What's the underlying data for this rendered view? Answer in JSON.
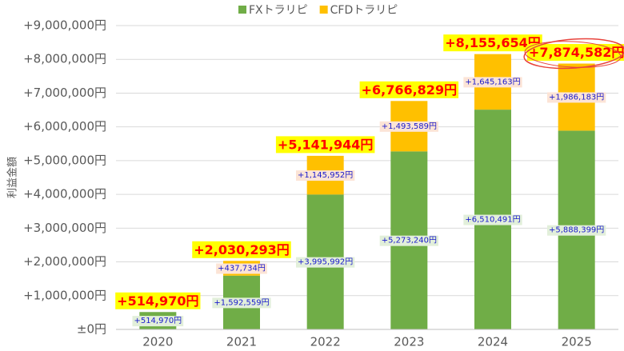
{
  "chart_data": {
    "type": "stacked_bar",
    "y_label": "利益金額",
    "categories": [
      "2020",
      "2021",
      "2022",
      "2023",
      "2024",
      "2025"
    ],
    "series": [
      {
        "name": "FXトラリピ",
        "color": "#70ad47",
        "label_bg": "#e2efda",
        "values": [
          514970,
          1592559,
          3995992,
          5273240,
          6510491,
          5888399
        ],
        "value_labels": [
          "+514,970円",
          "+1,592,559円",
          "+3,995,992円",
          "+5,273,240円",
          "+6,510,491円",
          "+5,888,399円"
        ]
      },
      {
        "name": "CFDトラリピ",
        "color": "#ffc000",
        "label_bg": "#fce4d6",
        "values": [
          null,
          437734,
          1145952,
          1493589,
          1645163,
          1986183
        ],
        "value_labels": [
          null,
          "+437,734円",
          "+1,145,952円",
          "+1,493,589円",
          "+1,645,163円",
          "+1,986,183円"
        ]
      }
    ],
    "totals": [
      514970,
      2030293,
      5141944,
      6766829,
      8155654,
      7874582
    ],
    "total_labels": [
      "+514,970円",
      "+2,030,293円",
      "+5,141,944円",
      "+6,766,829円",
      "+8,155,654円",
      "+7,874,582円"
    ],
    "ylim": [
      0,
      9000000
    ],
    "yticks": [
      {
        "value": 0,
        "label": "±0円"
      },
      {
        "value": 1000000,
        "label": "+1,000,000円"
      },
      {
        "value": 2000000,
        "label": "+2,000,000円"
      },
      {
        "value": 3000000,
        "label": "+3,000,000円"
      },
      {
        "value": 4000000,
        "label": "+4,000,000円"
      },
      {
        "value": 5000000,
        "label": "+5,000,000円"
      },
      {
        "value": 6000000,
        "label": "+6,000,000円"
      },
      {
        "value": 7000000,
        "label": "+7,000,000円"
      },
      {
        "value": 8000000,
        "label": "+8,000,000円"
      },
      {
        "value": 9000000,
        "label": "+9,000,000円"
      }
    ],
    "grid": true
  }
}
